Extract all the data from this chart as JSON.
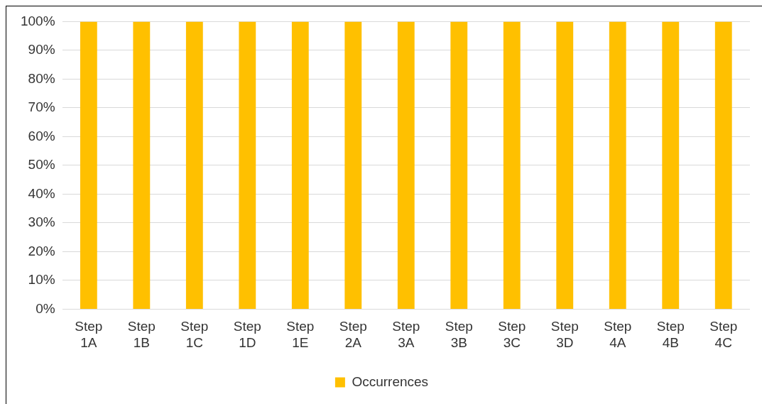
{
  "chart_data": {
    "type": "bar",
    "categories": [
      "Step 1A",
      "Step 1B",
      "Step 1C",
      "Step 1D",
      "Step 1E",
      "Step 2A",
      "Step 3A",
      "Step 3B",
      "Step 3C",
      "Step 3D",
      "Step 4A",
      "Step 4B",
      "Step 4C"
    ],
    "series": [
      {
        "name": "Occurrences",
        "color": "#ffc000",
        "values": [
          100,
          100,
          100,
          100,
          100,
          100,
          100,
          100,
          100,
          100,
          100,
          100,
          100
        ]
      }
    ],
    "ylim": [
      0,
      100
    ],
    "yticks": [
      {
        "value": 0,
        "label": "0%"
      },
      {
        "value": 10,
        "label": "10%"
      },
      {
        "value": 20,
        "label": "20%"
      },
      {
        "value": 30,
        "label": "30%"
      },
      {
        "value": 40,
        "label": "40%"
      },
      {
        "value": 50,
        "label": "50%"
      },
      {
        "value": 60,
        "label": "60%"
      },
      {
        "value": 70,
        "label": "70%"
      },
      {
        "value": 80,
        "label": "80%"
      },
      {
        "value": 90,
        "label": "90%"
      },
      {
        "value": 100,
        "label": "100%"
      }
    ],
    "grid": "y",
    "legend": "bottom"
  }
}
